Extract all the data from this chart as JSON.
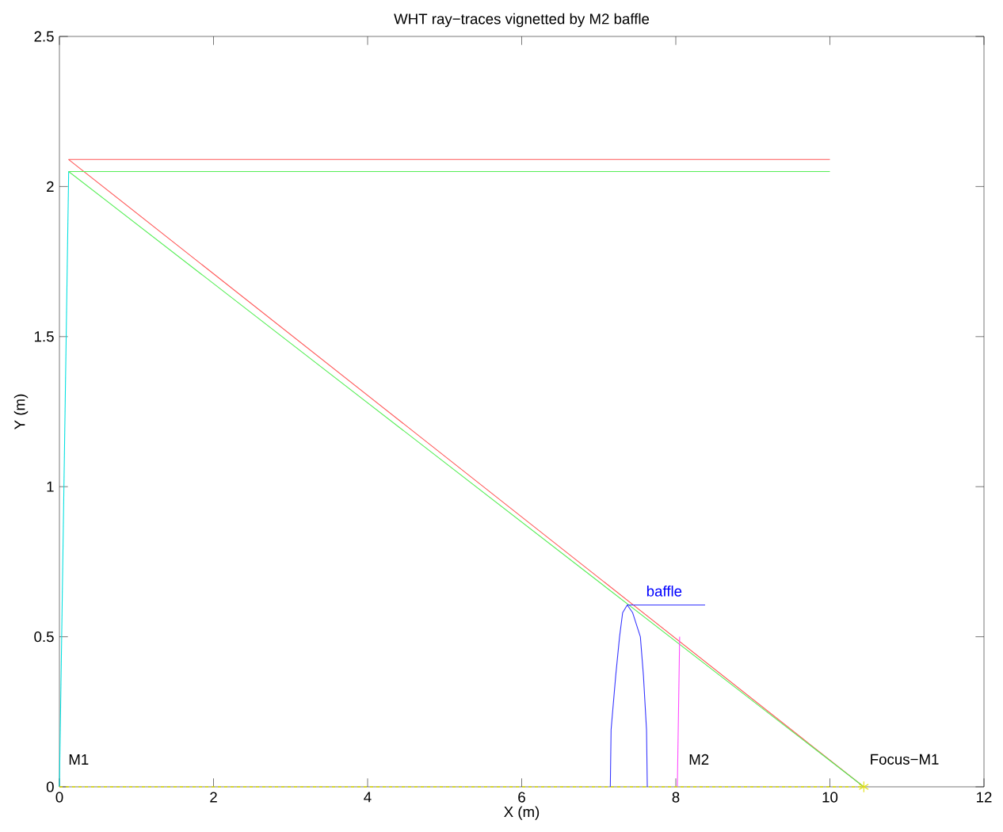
{
  "chart_data": {
    "type": "line",
    "title": "WHT ray−traces vignetted by M2 baffle",
    "xlabel": "X (m)",
    "ylabel": "Y (m)",
    "xlim": [
      0,
      12
    ],
    "ylim": [
      0,
      2.5
    ],
    "xticks": [
      0,
      2,
      4,
      6,
      8,
      10,
      12
    ],
    "yticks": [
      0,
      0.5,
      1,
      1.5,
      2,
      2.5
    ],
    "grid": false,
    "series": [
      {
        "color": "#ff5555",
        "x": [
          10,
          0.12,
          10.44
        ],
        "values": [
          2.09,
          2.09,
          0
        ]
      },
      {
        "color": "#55ee55",
        "x": [
          10,
          0.12,
          10.44
        ],
        "values": [
          2.05,
          2.05,
          0
        ]
      },
      {
        "color": "#00e0e0",
        "x": [
          0,
          0.12
        ],
        "values": [
          0,
          2.05
        ]
      },
      {
        "color": "#3333ff",
        "x": [
          7.15,
          7.16,
          7.22,
          7.27,
          7.31,
          7.37,
          7.44,
          7.54,
          7.58,
          7.62,
          7.63
        ],
        "values": [
          0,
          0.19,
          0.37,
          0.5,
          0.58,
          0.606,
          0.58,
          0.5,
          0.37,
          0.19,
          0
        ]
      },
      {
        "color": "#3333ff",
        "x": [
          7.37,
          8.38
        ],
        "values": [
          0.606,
          0.606
        ]
      },
      {
        "color": "#ff44ff",
        "x": [
          8.02,
          8.05
        ],
        "values": [
          0,
          0.5
        ]
      },
      {
        "color": "#e0e000",
        "line_style": "dashed",
        "x": [
          0,
          10.44
        ],
        "values": [
          0,
          0
        ]
      },
      {
        "type": "scatter",
        "marker": "cross",
        "color": "#e0e000",
        "x": [
          10.44
        ],
        "values": [
          0
        ]
      }
    ],
    "annotations": [
      "M1",
      "baffle",
      "M2",
      "Focus−M1"
    ]
  }
}
